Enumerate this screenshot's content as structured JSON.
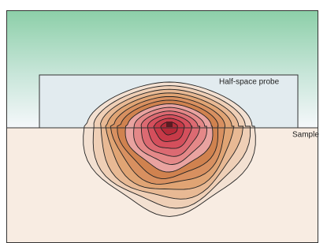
{
  "labels": {
    "probe": "Half-space probe",
    "sample": "Sample"
  }
}
